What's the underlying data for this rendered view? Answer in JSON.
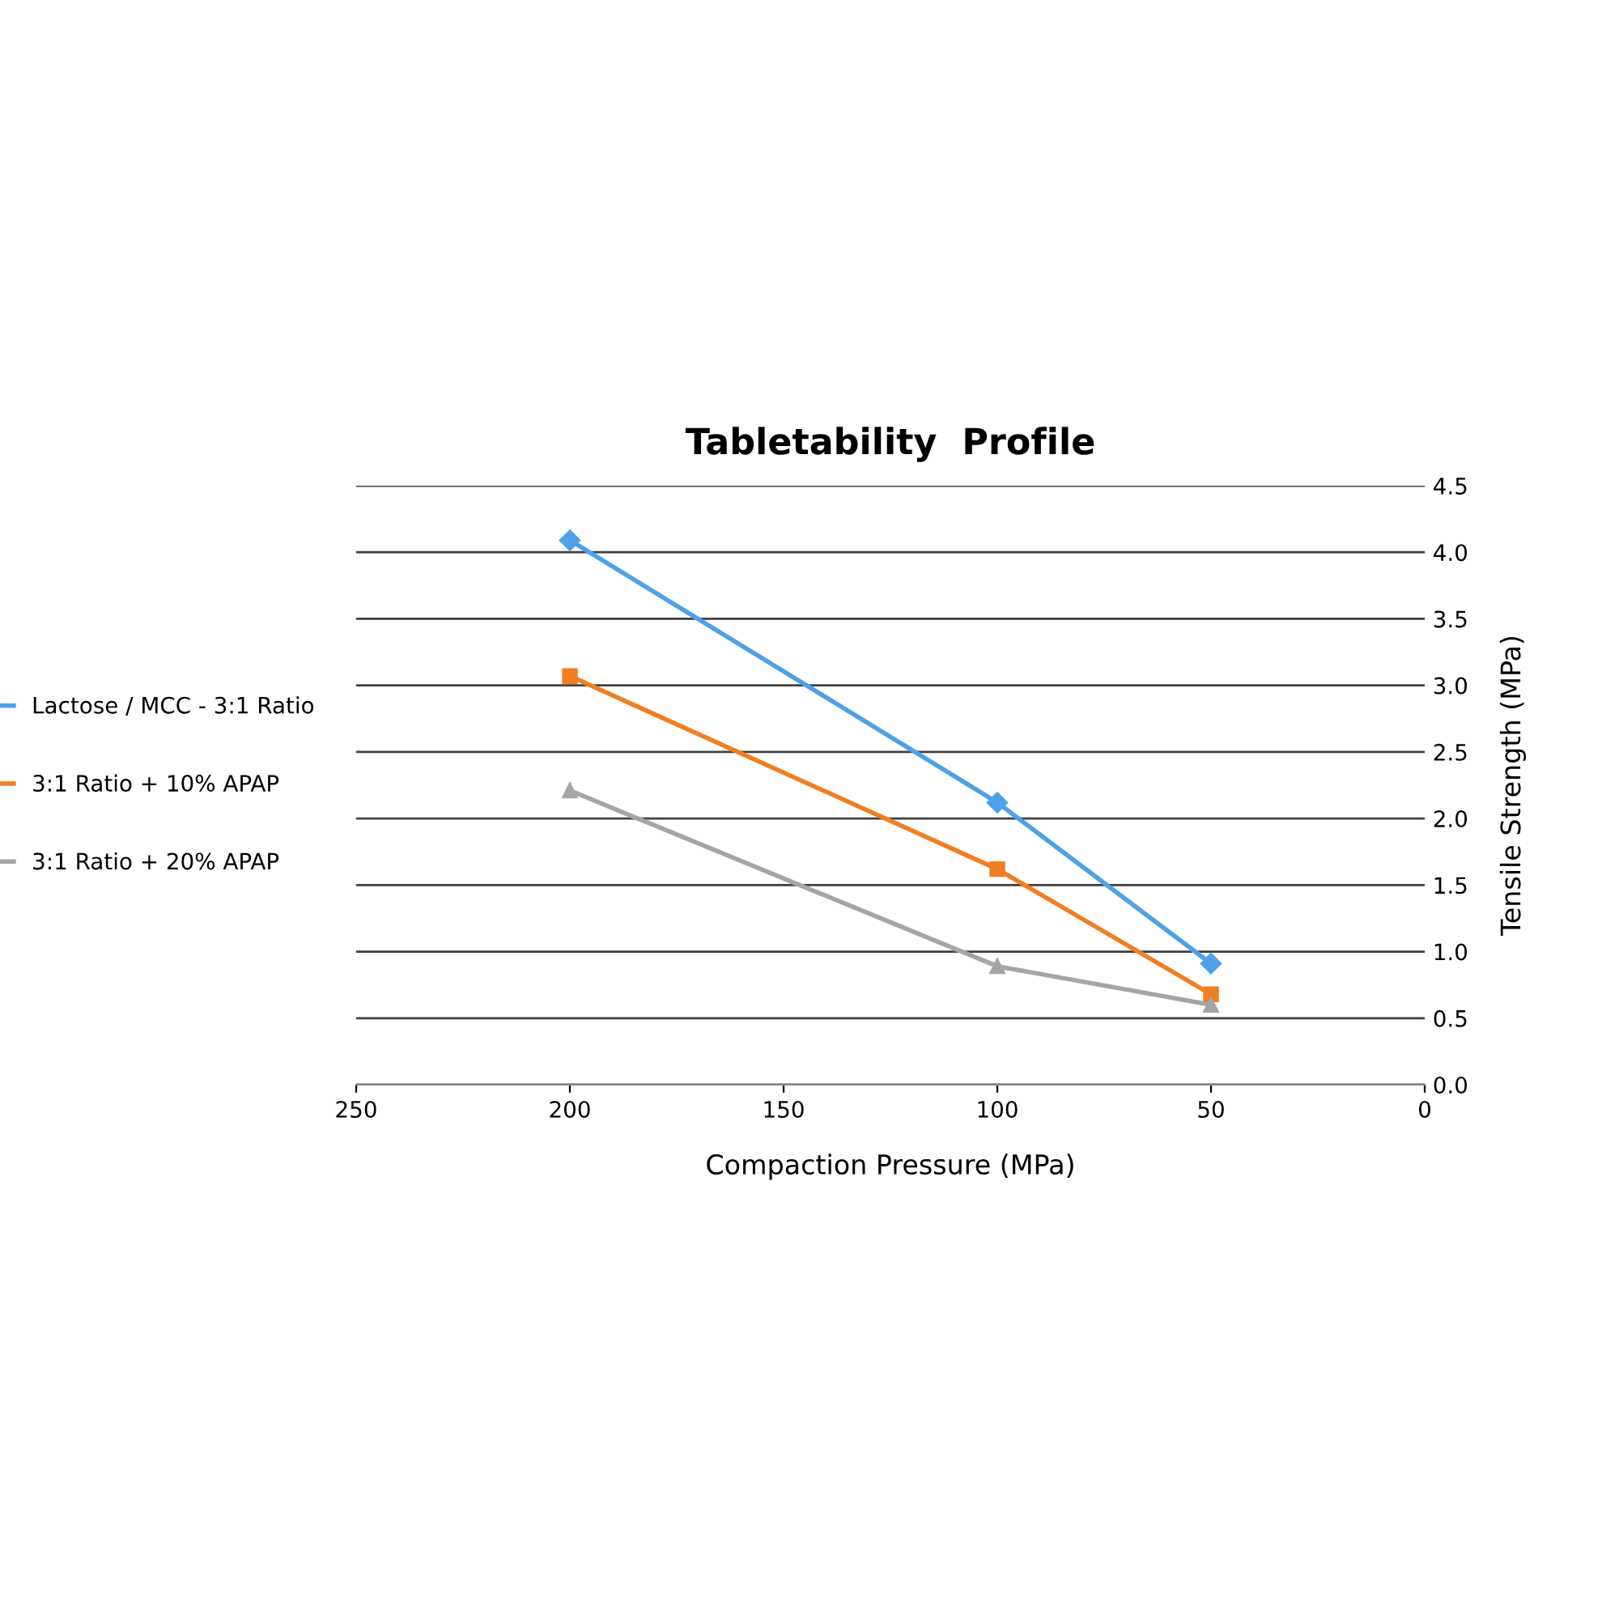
{
  "chart_data": {
    "type": "line",
    "title": "Tabletability  Profile",
    "xlabel": "Compaction Pressure (MPa)",
    "ylabel": "Tensile Strength (MPa)",
    "x": [
      200,
      100,
      50
    ],
    "series": [
      {
        "name": "Lactose / MCC - 3:1 Ratio",
        "color": "#4ea1e8",
        "marker": "diamond",
        "values": [
          4.09,
          2.12,
          0.91
        ]
      },
      {
        "name": "3:1 Ratio + 10% APAP",
        "color": "#f07f22",
        "marker": "square",
        "values": [
          3.07,
          1.62,
          0.68
        ]
      },
      {
        "name": "3:1 Ratio + 20% APAP",
        "color": "#a5a5a5",
        "marker": "triangle",
        "values": [
          2.21,
          0.89,
          0.6
        ]
      }
    ],
    "xlim": [
      250,
      0
    ],
    "xticks": [
      250,
      200,
      150,
      100,
      50,
      0
    ],
    "ylim": [
      0,
      4.5
    ],
    "yticks": [
      {
        "value": 0,
        "label": "0.0"
      },
      {
        "value": 0.5,
        "label": "0.5"
      },
      {
        "value": 1,
        "label": "1.0"
      },
      {
        "value": 1.5,
        "label": "1.5"
      },
      {
        "value": 2,
        "label": "2.0"
      },
      {
        "value": 2.5,
        "label": "2.5"
      },
      {
        "value": 3,
        "label": "3.0"
      },
      {
        "value": 3.5,
        "label": "3.5"
      },
      {
        "value": 4,
        "label": "4.0"
      },
      {
        "value": 4.5,
        "label": "4.5"
      }
    ],
    "grid": "y",
    "legend": "left",
    "line_style": "solid"
  }
}
